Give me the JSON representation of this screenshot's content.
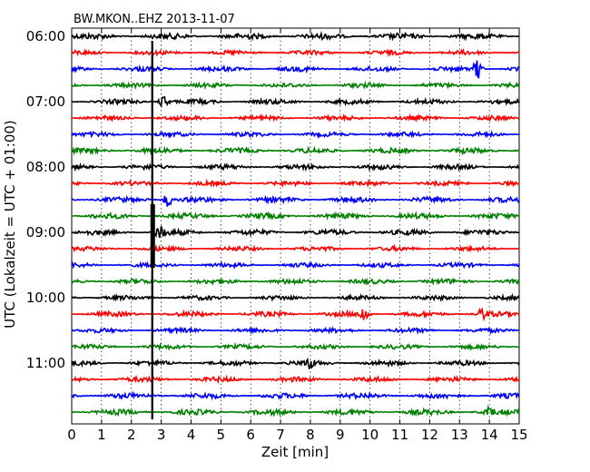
{
  "chart_data": {
    "type": "line",
    "title": "BW.MKON..EHZ 2013-11-07",
    "xlabel": "Zeit  [min]",
    "ylabel": "UTC (Lokalzeit = UTC + 01:00)",
    "xlim": [
      0,
      15
    ],
    "x_ticks": [
      "0",
      "1",
      "2",
      "3",
      "4",
      "5",
      "6",
      "7",
      "8",
      "9",
      "10",
      "11",
      "12",
      "13",
      "14",
      "15"
    ],
    "y_tick_labels": [
      "06:00",
      "07:00",
      "08:00",
      "09:00",
      "10:00",
      "11:00"
    ],
    "grid": "vertical dotted lines at each minute",
    "line_colors": [
      "#000000",
      "#ff0000",
      "#0000ff",
      "#008000"
    ],
    "traces": [
      {
        "start": "06:00",
        "color": "#000000",
        "amplitude": 0.6
      },
      {
        "start": "06:15",
        "color": "#ff0000",
        "amplitude": 0.45
      },
      {
        "start": "06:30",
        "color": "#0000ff",
        "amplitude": 0.5
      },
      {
        "start": "06:45",
        "color": "#008000",
        "amplitude": 0.45
      },
      {
        "start": "07:00",
        "color": "#000000",
        "amplitude": 0.5
      },
      {
        "start": "07:15",
        "color": "#ff0000",
        "amplitude": 0.45
      },
      {
        "start": "07:30",
        "color": "#0000ff",
        "amplitude": 0.45
      },
      {
        "start": "07:45",
        "color": "#008000",
        "amplitude": 0.55
      },
      {
        "start": "08:00",
        "color": "#000000",
        "amplitude": 0.5
      },
      {
        "start": "08:15",
        "color": "#ff0000",
        "amplitude": 0.45
      },
      {
        "start": "08:30",
        "color": "#0000ff",
        "amplitude": 0.55
      },
      {
        "start": "08:45",
        "color": "#008000",
        "amplitude": 0.55
      },
      {
        "start": "09:00",
        "color": "#000000",
        "amplitude": 0.55
      },
      {
        "start": "09:15",
        "color": "#ff0000",
        "amplitude": 0.45
      },
      {
        "start": "09:30",
        "color": "#0000ff",
        "amplitude": 0.45
      },
      {
        "start": "09:45",
        "color": "#008000",
        "amplitude": 0.5
      },
      {
        "start": "10:00",
        "color": "#000000",
        "amplitude": 0.45
      },
      {
        "start": "10:15",
        "color": "#ff0000",
        "amplitude": 0.5
      },
      {
        "start": "10:30",
        "color": "#0000ff",
        "amplitude": 0.45
      },
      {
        "start": "10:45",
        "color": "#008000",
        "amplitude": 0.45
      },
      {
        "start": "11:00",
        "color": "#000000",
        "amplitude": 0.5
      },
      {
        "start": "11:15",
        "color": "#ff0000",
        "amplitude": 0.5
      },
      {
        "start": "11:30",
        "color": "#0000ff",
        "amplitude": 0.55
      },
      {
        "start": "11:45",
        "color": "#008000",
        "amplitude": 0.55
      }
    ],
    "events": [
      {
        "trace": "06:30",
        "time_min": 13.6,
        "amplitude": 1.4
      },
      {
        "trace": "07:00",
        "time_min": 3.1,
        "amplitude": 1.0
      },
      {
        "trace": "08:30",
        "time_min": 3.2,
        "amplitude": 1.0
      },
      {
        "trace": "09:00",
        "time_min": 3.0,
        "amplitude": 1.2
      },
      {
        "trace": "10:15",
        "time_min": 9.8,
        "amplitude": 1.1
      },
      {
        "trace": "10:15",
        "time_min": 13.8,
        "amplitude": 1.0
      },
      {
        "trace": "11:00",
        "time_min": 8.0,
        "amplitude": 0.9
      },
      {
        "trace": "11:45",
        "time_min": 14.0,
        "amplitude": 0.9
      }
    ],
    "vertical_marker_min": 2.7
  }
}
